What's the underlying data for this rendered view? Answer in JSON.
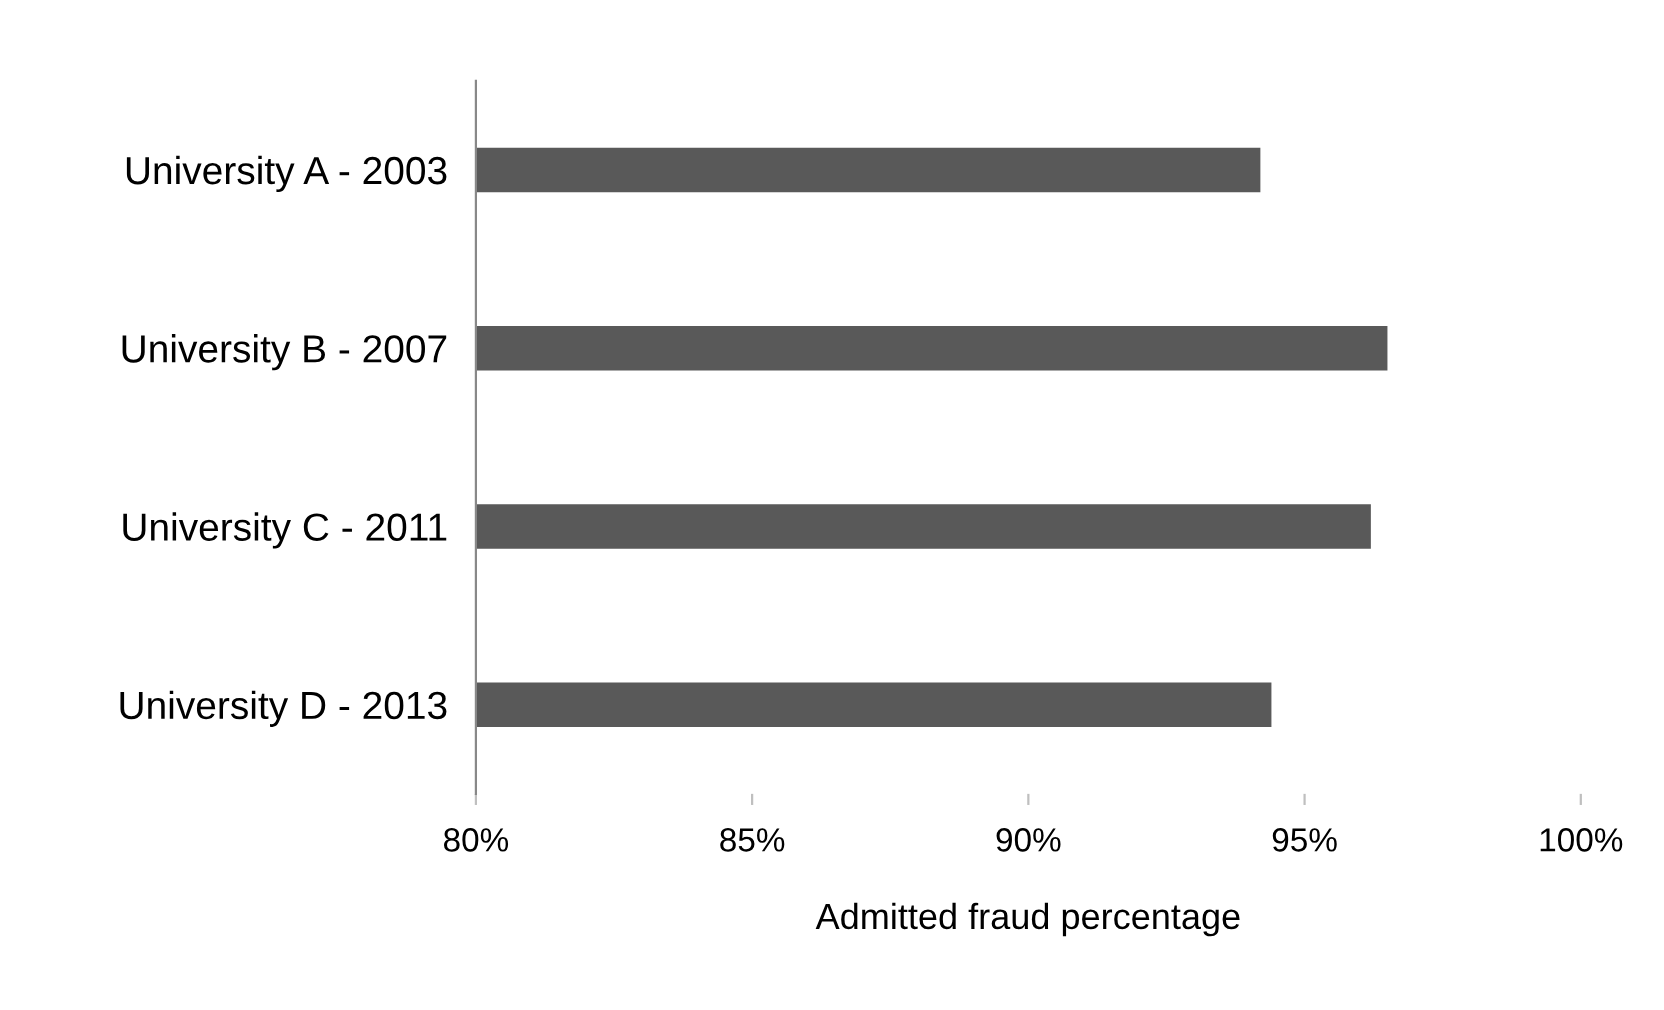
{
  "chart_data": {
    "type": "bar",
    "orientation": "horizontal",
    "xlabel": "Admitted fraud percentage",
    "categories": [
      "University A - 2003",
      "University B - 2007",
      "University C - 2011",
      "University D - 2013"
    ],
    "values": [
      94.2,
      96.5,
      96.2,
      94.4
    ],
    "color": "#595959",
    "xlim": [
      80,
      100
    ],
    "xticks": [
      {
        "value": 80,
        "label": "80%"
      },
      {
        "value": 85,
        "label": "85%"
      },
      {
        "value": 90,
        "label": "90%"
      },
      {
        "value": 95,
        "label": "95%"
      },
      {
        "value": 100,
        "label": "100%"
      }
    ],
    "grid": false,
    "legend": false
  }
}
